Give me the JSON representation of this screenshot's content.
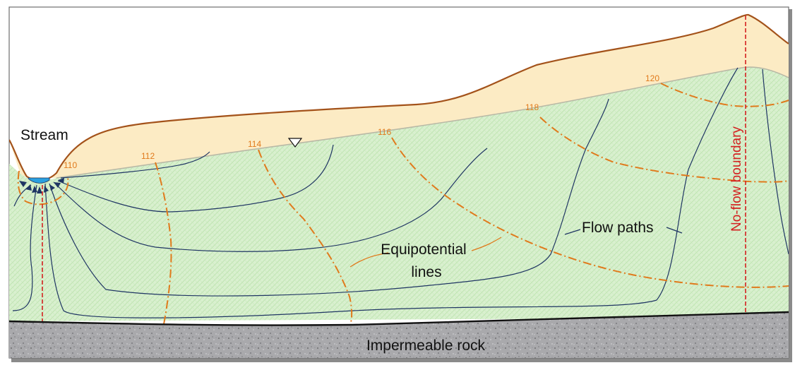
{
  "labels": {
    "stream": "Stream",
    "flow_paths": "Flow paths",
    "equipotential_line1": "Equipotential",
    "equipotential_line2": "lines",
    "no_flow": "No-flow boundary",
    "rock": "Impermeable rock"
  },
  "contours": [
    "110",
    "112",
    "114",
    "116",
    "118",
    "120"
  ],
  "colors": {
    "unsaturated_zone": "#fcebc4",
    "saturated_zone": "#d9f0cf",
    "hatch": "#a9d99a",
    "ground_surface": "#a3521a",
    "flow_lines": "#1f3563",
    "equipotential": "#e07a1c",
    "no_flow_boundary": "#d42020",
    "stream_water": "#2aa0e0",
    "rock": "#a8a8ab"
  },
  "icons": {
    "water_table_marker": "inverted-triangle-icon",
    "flow_arrows": "arrowhead-icon"
  }
}
